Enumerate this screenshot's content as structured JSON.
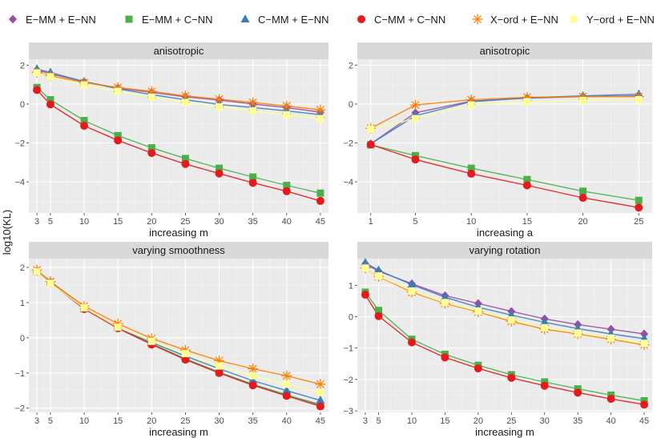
{
  "legend": [
    {
      "label": "E−MM + E−NN",
      "color": "#984EA3",
      "shape": "diamond"
    },
    {
      "label": "E−MM + C−NN",
      "color": "#4DAF4A",
      "shape": "square"
    },
    {
      "label": "C−MM + E−NN",
      "color": "#377EB8",
      "shape": "triangle"
    },
    {
      "label": "C−MM + C−NN",
      "color": "#E41A1C",
      "shape": "circle"
    },
    {
      "label": "X−ord + E−NN",
      "color": "#FF7F00",
      "shape": "star"
    },
    {
      "label": "Y−ord + E−NN",
      "color": "#FFFF99",
      "shape": "square"
    }
  ],
  "ylabel": "log10(KL)",
  "chart_data": [
    {
      "type": "line",
      "title": "anisotropic",
      "xlabel": "increasing m",
      "x": [
        3,
        5,
        10,
        15,
        20,
        25,
        30,
        35,
        40,
        45
      ],
      "xticks": [
        3,
        5,
        10,
        15,
        20,
        25,
        30,
        35,
        40,
        45
      ],
      "xlim": [
        1.8,
        46.2
      ],
      "yticks": [
        -4,
        -2,
        0,
        2
      ],
      "ytick_labels": [
        "−4",
        "−2",
        "0",
        "2"
      ],
      "ylim": [
        -5.6,
        2.3
      ],
      "series": [
        {
          "name": "E−MM + E−NN",
          "values": [
            1.75,
            1.55,
            1.15,
            0.82,
            0.6,
            0.37,
            0.2,
            0.0,
            -0.18,
            -0.42
          ]
        },
        {
          "name": "E−MM + C−NN",
          "values": [
            0.85,
            0.22,
            -0.85,
            -1.62,
            -2.25,
            -2.8,
            -3.3,
            -3.75,
            -4.18,
            -4.58
          ]
        },
        {
          "name": "C−MM + E−NN",
          "values": [
            1.8,
            1.62,
            1.15,
            0.78,
            0.48,
            0.22,
            -0.02,
            -0.18,
            -0.35,
            -0.55
          ]
        },
        {
          "name": "C−MM + C−NN",
          "values": [
            0.72,
            -0.02,
            -1.12,
            -1.87,
            -2.52,
            -3.08,
            -3.57,
            -4.05,
            -4.48,
            -4.98
          ]
        },
        {
          "name": "X−ord + E−NN",
          "values": [
            1.62,
            1.45,
            1.1,
            0.85,
            0.65,
            0.42,
            0.25,
            0.08,
            -0.1,
            -0.3
          ]
        },
        {
          "name": "Y−ord + E−NN",
          "values": [
            1.6,
            1.4,
            0.98,
            0.65,
            0.35,
            0.08,
            -0.15,
            -0.35,
            -0.55,
            -0.75
          ]
        }
      ]
    },
    {
      "type": "line",
      "title": "anisotropic",
      "xlabel": "increasing a",
      "x": [
        1,
        5,
        10,
        15,
        20,
        25
      ],
      "xticks": [
        1,
        5,
        10,
        15,
        20,
        25
      ],
      "xlim": [
        -0.2,
        26.2
      ],
      "yticks": [
        -4,
        -2,
        0,
        2
      ],
      "ytick_labels": [
        "−4",
        "−2",
        "0",
        "2"
      ],
      "ylim": [
        -5.6,
        2.3
      ],
      "series": [
        {
          "name": "E−MM + E−NN",
          "values": [
            -2.05,
            -0.45,
            0.15,
            0.3,
            0.38,
            0.42
          ]
        },
        {
          "name": "E−MM + C−NN",
          "values": [
            -2.1,
            -2.65,
            -3.3,
            -3.88,
            -4.48,
            -4.95
          ]
        },
        {
          "name": "C−MM + E−NN",
          "values": [
            -2.05,
            -0.6,
            0.12,
            0.32,
            0.42,
            0.5
          ]
        },
        {
          "name": "C−MM + C−NN",
          "values": [
            -2.08,
            -2.85,
            -3.58,
            -4.18,
            -4.82,
            -5.32
          ]
        },
        {
          "name": "X−ord + E−NN",
          "values": [
            -1.25,
            -0.05,
            0.22,
            0.35,
            0.38,
            0.38
          ]
        },
        {
          "name": "Y−ord + E−NN",
          "values": [
            -1.3,
            -0.75,
            -0.05,
            0.12,
            0.18,
            0.22
          ]
        }
      ]
    },
    {
      "type": "line",
      "title": "varying smoothness",
      "xlabel": "increasing m",
      "x": [
        3,
        5,
        10,
        15,
        20,
        25,
        30,
        35,
        40,
        45
      ],
      "xticks": [
        3,
        5,
        10,
        15,
        20,
        25,
        30,
        35,
        40,
        45
      ],
      "xlim": [
        1.8,
        46.2
      ],
      "yticks": [
        -2,
        -1,
        0,
        1,
        2
      ],
      "ytick_labels": [
        "−2",
        "−1",
        "0",
        "1",
        "2"
      ],
      "ylim": [
        -2.12,
        2.25
      ],
      "series": [
        {
          "name": "E−MM + E−NN",
          "values": [
            1.9,
            1.57,
            0.82,
            0.28,
            -0.18,
            -0.6,
            -0.98,
            -1.33,
            -1.63,
            -1.9
          ]
        },
        {
          "name": "E−MM + C−NN",
          "values": [
            1.88,
            1.57,
            0.83,
            0.29,
            -0.17,
            -0.6,
            -0.98,
            -1.32,
            -1.62,
            -1.92
          ]
        },
        {
          "name": "C−MM + E−NN",
          "values": [
            1.9,
            1.58,
            0.85,
            0.3,
            -0.13,
            -0.52,
            -0.88,
            -1.22,
            -1.5,
            -1.78
          ]
        },
        {
          "name": "C−MM + C−NN",
          "values": [
            1.88,
            1.56,
            0.82,
            0.27,
            -0.19,
            -0.62,
            -1.0,
            -1.35,
            -1.65,
            -1.95
          ]
        },
        {
          "name": "X−ord + E−NN",
          "values": [
            1.93,
            1.6,
            0.9,
            0.4,
            -0.02,
            -0.35,
            -0.65,
            -0.88,
            -1.08,
            -1.32
          ]
        },
        {
          "name": "Y−ord + E−NN",
          "values": [
            1.88,
            1.55,
            0.85,
            0.3,
            -0.1,
            -0.45,
            -0.8,
            -1.08,
            -1.32,
            -1.55
          ]
        }
      ]
    },
    {
      "type": "line",
      "title": "varying rotation",
      "xlabel": "increasing m",
      "x": [
        3,
        5,
        10,
        15,
        20,
        25,
        30,
        35,
        40,
        45
      ],
      "xticks": [
        3,
        5,
        10,
        15,
        20,
        25,
        30,
        35,
        40,
        45
      ],
      "xlim": [
        1.8,
        46.2
      ],
      "yticks": [
        -3,
        -2,
        -1,
        0,
        1
      ],
      "ytick_labels": [
        "−3",
        "−2",
        "−1",
        "0",
        "1"
      ],
      "ylim": [
        -3.05,
        1.85
      ],
      "series": [
        {
          "name": "E−MM + E−NN",
          "values": [
            1.68,
            1.45,
            1.05,
            0.67,
            0.42,
            0.17,
            -0.07,
            -0.25,
            -0.4,
            -0.55
          ]
        },
        {
          "name": "E−MM + C−NN",
          "values": [
            0.78,
            0.2,
            -0.72,
            -1.2,
            -1.55,
            -1.85,
            -2.08,
            -2.3,
            -2.5,
            -2.68
          ]
        },
        {
          "name": "C−MM + E−NN",
          "values": [
            1.72,
            1.48,
            1.02,
            0.62,
            0.3,
            0.05,
            -0.18,
            -0.38,
            -0.55,
            -0.7
          ]
        },
        {
          "name": "C−MM + C−NN",
          "values": [
            0.7,
            0.02,
            -0.82,
            -1.3,
            -1.65,
            -1.95,
            -2.2,
            -2.42,
            -2.62,
            -2.8
          ]
        },
        {
          "name": "X−ord + E−NN",
          "values": [
            1.55,
            1.28,
            0.78,
            0.42,
            0.15,
            -0.15,
            -0.4,
            -0.55,
            -0.72,
            -0.9
          ]
        },
        {
          "name": "Y−ord + E−NN",
          "values": [
            1.55,
            1.3,
            0.82,
            0.45,
            0.18,
            -0.1,
            -0.35,
            -0.52,
            -0.68,
            -0.85
          ]
        }
      ]
    }
  ]
}
